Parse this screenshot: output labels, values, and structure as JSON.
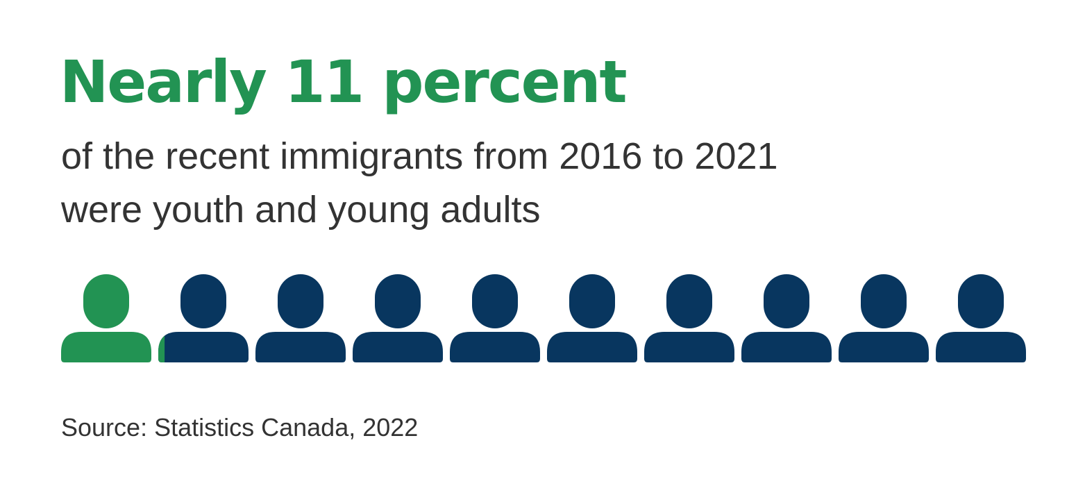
{
  "headline": "Nearly 11 percent",
  "subtitle_line_1": "of the recent immigrants from 2016 to 2021",
  "subtitle_line_2": "were youth and young adults",
  "source": "Source: Statistics Canada, 2022",
  "pictogram": {
    "icon": "person-icon",
    "total_icons": 10,
    "highlighted_fraction": 0.107
  },
  "colors": {
    "highlight": "#229353",
    "base": "#08365f",
    "text": "#333333"
  }
}
